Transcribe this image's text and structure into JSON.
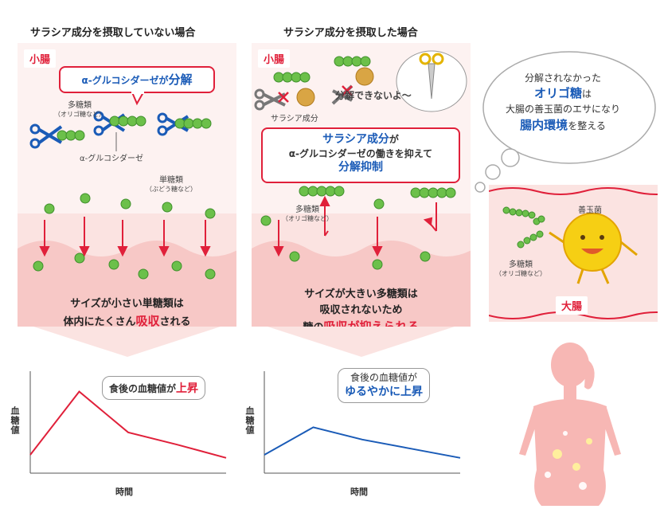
{
  "left": {
    "title": "サラシア成分を摂取していない場合",
    "organ": "小腸",
    "enzyme_bubble": {
      "prefix": "α-グルコシダーゼが",
      "action": "分解"
    },
    "polysaccharide_label": "多糖類",
    "polysaccharide_sub": "（オリゴ糖など）",
    "enzyme_label": "α-グルコシダーゼ",
    "monosaccharide_label": "単糖類",
    "monosaccharide_sub": "（ぶどう糖など）",
    "bottom_line1": "サイズが小さい単糖類は",
    "bottom_line2_a": "体内にたくさん",
    "bottom_line2_b": "吸収",
    "bottom_line2_c": "される",
    "callout_a": "食後の血糖値が",
    "callout_b": "上昇",
    "ylabel": "血糖値",
    "xlabel": "時間"
  },
  "middle": {
    "title": "サラシア成分を摂取した場合",
    "organ": "小腸",
    "salacia_label": "サラシア成分",
    "scissors_bubble": "分解できないよ〜",
    "box_line1_a": "サラシア成分",
    "box_line1_b": "が",
    "box_line2": "α-グルコシダーゼの働きを抑えて",
    "box_line3": "分解抑制",
    "polysaccharide_label": "多糖類",
    "polysaccharide_sub": "（オリゴ糖など）",
    "bottom_line1": "サイズが大きい多糖類は",
    "bottom_line2": "吸収されないため",
    "bottom_line3_a": "糖の",
    "bottom_line3_b": "吸収が抑えられる",
    "callout_line1": "食後の血糖値が",
    "callout_line2": "ゆるやかに上昇",
    "ylabel": "血糖値",
    "xlabel": "時間"
  },
  "right": {
    "cloud_line1": "分解されなかった",
    "cloud_line2_a": "オリゴ糖",
    "cloud_line2_b": "は",
    "cloud_line3": "大腸の善玉菌のエサになり",
    "cloud_line4_a": "腸内環境",
    "cloud_line4_b": "を整える",
    "good_bacteria_label": "善玉菌",
    "polysaccharide_label": "多糖類",
    "polysaccharide_sub": "（オリゴ糖など）",
    "organ": "大腸"
  },
  "colors": {
    "red": "#e0203a",
    "blue": "#1a5bb7",
    "sugar_green": "#6cc04a",
    "panel_pink": "#fbe3e1"
  },
  "chart_data": [
    {
      "type": "line",
      "title": "",
      "xlabel": "時間",
      "ylabel": "血糖値",
      "color": "#e0203a",
      "ylim": [
        0,
        100
      ],
      "x": [
        0,
        1,
        2,
        3,
        4
      ],
      "y": [
        18,
        80,
        40,
        28,
        15
      ]
    },
    {
      "type": "line",
      "title": "",
      "xlabel": "時間",
      "ylabel": "血糖値",
      "color": "#1a5bb7",
      "ylim": [
        0,
        100
      ],
      "x": [
        0,
        1,
        2,
        3,
        4
      ],
      "y": [
        18,
        45,
        33,
        24,
        15
      ]
    }
  ]
}
